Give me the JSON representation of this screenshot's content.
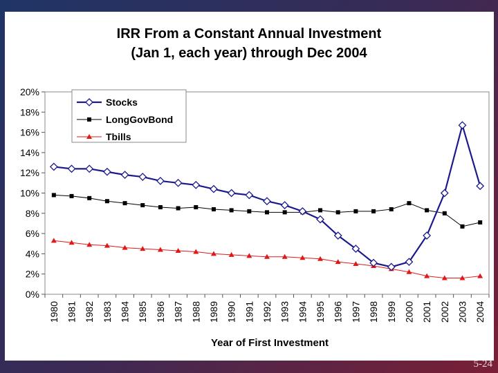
{
  "slide_number": "5-24",
  "colors": {
    "stocks": "#1a1a8c",
    "bonds": "#000000",
    "tbills": "#e01818"
  },
  "chart_data": {
    "type": "line",
    "title": "IRR From a Constant Annual Investment",
    "subtitle": "(Jan 1, each year) through Dec 2004",
    "xlabel": "Year of First Investment",
    "ylabel": "",
    "ylim": [
      0,
      20
    ],
    "y_ticks": [
      "0%",
      "2%",
      "4%",
      "6%",
      "8%",
      "10%",
      "12%",
      "14%",
      "16%",
      "18%",
      "20%"
    ],
    "legend_position": "top-left",
    "categories": [
      "1980",
      "1981",
      "1982",
      "1983",
      "1984",
      "1985",
      "1986",
      "1987",
      "1988",
      "1989",
      "1990",
      "1991",
      "1992",
      "1993",
      "1994",
      "1995",
      "1996",
      "1997",
      "1998",
      "1999",
      "2000",
      "2001",
      "2002",
      "2003",
      "2004"
    ],
    "series": [
      {
        "name": "Stocks",
        "marker": "diamond",
        "values": [
          12.6,
          12.4,
          12.4,
          12.1,
          11.8,
          11.6,
          11.2,
          11.0,
          10.8,
          10.4,
          10.0,
          9.8,
          9.2,
          8.8,
          8.2,
          7.4,
          5.8,
          4.5,
          3.1,
          2.7,
          3.2,
          5.8,
          10.0,
          16.7,
          10.7
        ]
      },
      {
        "name": "LongGovBond",
        "marker": "square",
        "values": [
          9.8,
          9.7,
          9.5,
          9.2,
          9.0,
          8.8,
          8.6,
          8.5,
          8.6,
          8.4,
          8.3,
          8.2,
          8.1,
          8.1,
          8.1,
          8.3,
          8.1,
          8.2,
          8.2,
          8.4,
          9.0,
          8.3,
          8.0,
          6.7,
          7.1
        ]
      },
      {
        "name": "Tbills",
        "marker": "triangle",
        "values": [
          5.3,
          5.1,
          4.9,
          4.8,
          4.6,
          4.5,
          4.4,
          4.3,
          4.2,
          4.0,
          3.9,
          3.8,
          3.7,
          3.7,
          3.6,
          3.5,
          3.2,
          3.0,
          2.8,
          2.5,
          2.2,
          1.8,
          1.6,
          1.6,
          1.8
        ]
      }
    ]
  }
}
